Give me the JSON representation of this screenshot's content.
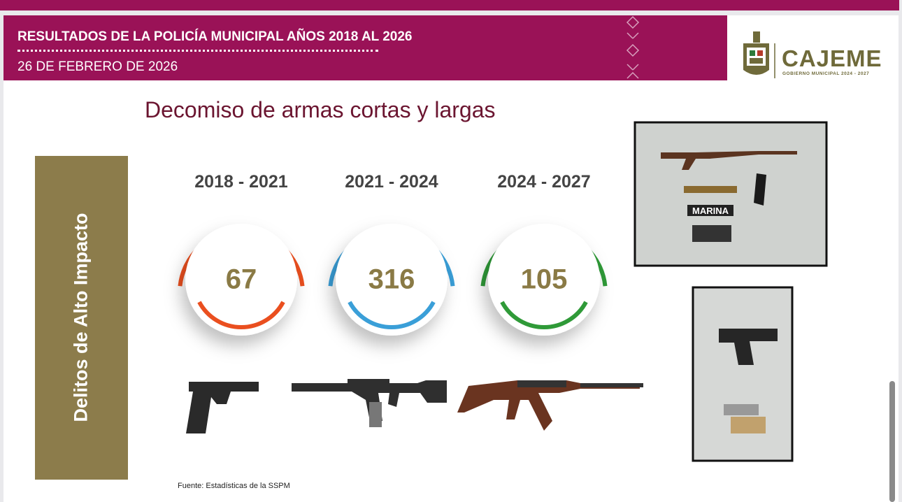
{
  "header": {
    "title": "RESULTADOS DE LA POLICÍA MUNICIPAL AÑOS 2018 AL 2026",
    "date": "26 DE FEBRERO DE 2026"
  },
  "logo": {
    "name": "CAJEME",
    "subtitle": "GOBIERNO MUNICIPAL 2024 - 2027"
  },
  "slide": {
    "title": "Decomiso de armas cortas y largas",
    "side_label": "Delitos de Alto Impacto",
    "periods": [
      {
        "label": "2018 - 2021",
        "value": 67,
        "color": "#ea4f1f"
      },
      {
        "label": "2021 - 2024",
        "value": 316,
        "color": "#3a9fd8"
      },
      {
        "label": "2024 - 2027",
        "value": 105,
        "color": "#2f9a38"
      }
    ],
    "photo_label": "MARINA",
    "source": "Fuente: Estadísticas de la SSPM"
  }
}
